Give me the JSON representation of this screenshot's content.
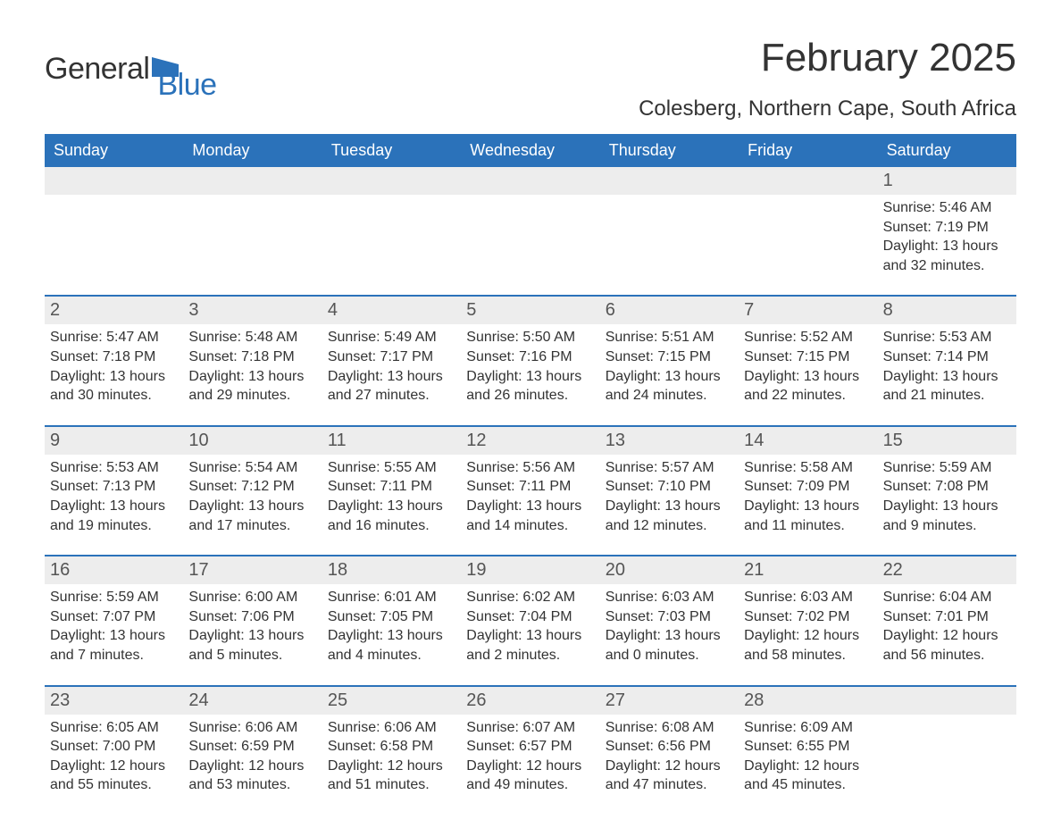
{
  "logo": {
    "word1": "General",
    "word2": "Blue",
    "accent": "#2b72ba",
    "text_color": "#333333"
  },
  "header": {
    "month_title": "February 2025",
    "location": "Colesberg, Northern Cape, South Africa"
  },
  "style": {
    "header_bg": "#2b72ba",
    "header_fg": "#ffffff",
    "row_stripe": "#ededed",
    "body_text": "#333333",
    "daynum_color": "#555555",
    "week_border": "#2b72ba",
    "page_bg": "#ffffff",
    "font_family": "Arial",
    "title_fontsize_pt": 33,
    "location_fontsize_pt": 18,
    "header_fontsize_pt": 14,
    "daynum_fontsize_pt": 15,
    "detail_fontsize_pt": 12
  },
  "columns": [
    "Sunday",
    "Monday",
    "Tuesday",
    "Wednesday",
    "Thursday",
    "Friday",
    "Saturday"
  ],
  "weeks": [
    [
      null,
      null,
      null,
      null,
      null,
      null,
      {
        "d": "1",
        "sunrise": "Sunrise: 5:46 AM",
        "sunset": "Sunset: 7:19 PM",
        "dl1": "Daylight: 13 hours",
        "dl2": "and 32 minutes."
      }
    ],
    [
      {
        "d": "2",
        "sunrise": "Sunrise: 5:47 AM",
        "sunset": "Sunset: 7:18 PM",
        "dl1": "Daylight: 13 hours",
        "dl2": "and 30 minutes."
      },
      {
        "d": "3",
        "sunrise": "Sunrise: 5:48 AM",
        "sunset": "Sunset: 7:18 PM",
        "dl1": "Daylight: 13 hours",
        "dl2": "and 29 minutes."
      },
      {
        "d": "4",
        "sunrise": "Sunrise: 5:49 AM",
        "sunset": "Sunset: 7:17 PM",
        "dl1": "Daylight: 13 hours",
        "dl2": "and 27 minutes."
      },
      {
        "d": "5",
        "sunrise": "Sunrise: 5:50 AM",
        "sunset": "Sunset: 7:16 PM",
        "dl1": "Daylight: 13 hours",
        "dl2": "and 26 minutes."
      },
      {
        "d": "6",
        "sunrise": "Sunrise: 5:51 AM",
        "sunset": "Sunset: 7:15 PM",
        "dl1": "Daylight: 13 hours",
        "dl2": "and 24 minutes."
      },
      {
        "d": "7",
        "sunrise": "Sunrise: 5:52 AM",
        "sunset": "Sunset: 7:15 PM",
        "dl1": "Daylight: 13 hours",
        "dl2": "and 22 minutes."
      },
      {
        "d": "8",
        "sunrise": "Sunrise: 5:53 AM",
        "sunset": "Sunset: 7:14 PM",
        "dl1": "Daylight: 13 hours",
        "dl2": "and 21 minutes."
      }
    ],
    [
      {
        "d": "9",
        "sunrise": "Sunrise: 5:53 AM",
        "sunset": "Sunset: 7:13 PM",
        "dl1": "Daylight: 13 hours",
        "dl2": "and 19 minutes."
      },
      {
        "d": "10",
        "sunrise": "Sunrise: 5:54 AM",
        "sunset": "Sunset: 7:12 PM",
        "dl1": "Daylight: 13 hours",
        "dl2": "and 17 minutes."
      },
      {
        "d": "11",
        "sunrise": "Sunrise: 5:55 AM",
        "sunset": "Sunset: 7:11 PM",
        "dl1": "Daylight: 13 hours",
        "dl2": "and 16 minutes."
      },
      {
        "d": "12",
        "sunrise": "Sunrise: 5:56 AM",
        "sunset": "Sunset: 7:11 PM",
        "dl1": "Daylight: 13 hours",
        "dl2": "and 14 minutes."
      },
      {
        "d": "13",
        "sunrise": "Sunrise: 5:57 AM",
        "sunset": "Sunset: 7:10 PM",
        "dl1": "Daylight: 13 hours",
        "dl2": "and 12 minutes."
      },
      {
        "d": "14",
        "sunrise": "Sunrise: 5:58 AM",
        "sunset": "Sunset: 7:09 PM",
        "dl1": "Daylight: 13 hours",
        "dl2": "and 11 minutes."
      },
      {
        "d": "15",
        "sunrise": "Sunrise: 5:59 AM",
        "sunset": "Sunset: 7:08 PM",
        "dl1": "Daylight: 13 hours",
        "dl2": "and 9 minutes."
      }
    ],
    [
      {
        "d": "16",
        "sunrise": "Sunrise: 5:59 AM",
        "sunset": "Sunset: 7:07 PM",
        "dl1": "Daylight: 13 hours",
        "dl2": "and 7 minutes."
      },
      {
        "d": "17",
        "sunrise": "Sunrise: 6:00 AM",
        "sunset": "Sunset: 7:06 PM",
        "dl1": "Daylight: 13 hours",
        "dl2": "and 5 minutes."
      },
      {
        "d": "18",
        "sunrise": "Sunrise: 6:01 AM",
        "sunset": "Sunset: 7:05 PM",
        "dl1": "Daylight: 13 hours",
        "dl2": "and 4 minutes."
      },
      {
        "d": "19",
        "sunrise": "Sunrise: 6:02 AM",
        "sunset": "Sunset: 7:04 PM",
        "dl1": "Daylight: 13 hours",
        "dl2": "and 2 minutes."
      },
      {
        "d": "20",
        "sunrise": "Sunrise: 6:03 AM",
        "sunset": "Sunset: 7:03 PM",
        "dl1": "Daylight: 13 hours",
        "dl2": "and 0 minutes."
      },
      {
        "d": "21",
        "sunrise": "Sunrise: 6:03 AM",
        "sunset": "Sunset: 7:02 PM",
        "dl1": "Daylight: 12 hours",
        "dl2": "and 58 minutes."
      },
      {
        "d": "22",
        "sunrise": "Sunrise: 6:04 AM",
        "sunset": "Sunset: 7:01 PM",
        "dl1": "Daylight: 12 hours",
        "dl2": "and 56 minutes."
      }
    ],
    [
      {
        "d": "23",
        "sunrise": "Sunrise: 6:05 AM",
        "sunset": "Sunset: 7:00 PM",
        "dl1": "Daylight: 12 hours",
        "dl2": "and 55 minutes."
      },
      {
        "d": "24",
        "sunrise": "Sunrise: 6:06 AM",
        "sunset": "Sunset: 6:59 PM",
        "dl1": "Daylight: 12 hours",
        "dl2": "and 53 minutes."
      },
      {
        "d": "25",
        "sunrise": "Sunrise: 6:06 AM",
        "sunset": "Sunset: 6:58 PM",
        "dl1": "Daylight: 12 hours",
        "dl2": "and 51 minutes."
      },
      {
        "d": "26",
        "sunrise": "Sunrise: 6:07 AM",
        "sunset": "Sunset: 6:57 PM",
        "dl1": "Daylight: 12 hours",
        "dl2": "and 49 minutes."
      },
      {
        "d": "27",
        "sunrise": "Sunrise: 6:08 AM",
        "sunset": "Sunset: 6:56 PM",
        "dl1": "Daylight: 12 hours",
        "dl2": "and 47 minutes."
      },
      {
        "d": "28",
        "sunrise": "Sunrise: 6:09 AM",
        "sunset": "Sunset: 6:55 PM",
        "dl1": "Daylight: 12 hours",
        "dl2": "and 45 minutes."
      },
      null
    ]
  ]
}
